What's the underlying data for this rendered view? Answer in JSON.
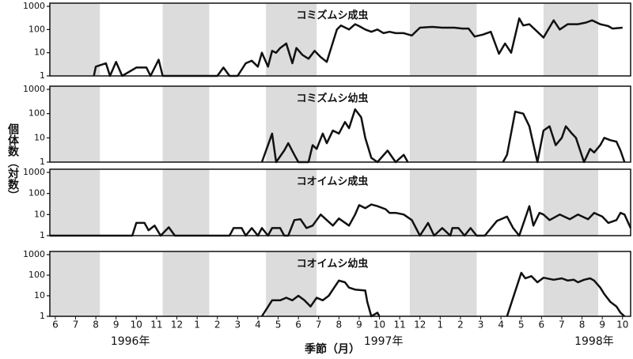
{
  "chart_data": [
    {
      "type": "line",
      "title": "コミズムシ成虫",
      "color": "#111111",
      "log_scale": true,
      "ylim": [
        1,
        1000
      ],
      "yticks": [
        1,
        10,
        100,
        1000
      ],
      "xlim": [
        -0.27,
        28.4
      ],
      "x": [
        1.9,
        2.0,
        2.5,
        2.7,
        3.0,
        3.3,
        4.0,
        4.5,
        4.7,
        5.1,
        5.3,
        8.0,
        8.3,
        8.6,
        9.0,
        9.4,
        9.7,
        10.0,
        10.2,
        10.5,
        10.7,
        10.9,
        11.1,
        11.4,
        11.7,
        11.9,
        12.2,
        12.5,
        12.8,
        13.1,
        13.4,
        13.9,
        14.1,
        14.5,
        14.8,
        15.0,
        15.3,
        15.6,
        15.9,
        16.2,
        16.5,
        16.8,
        17.2,
        17.6,
        18.0,
        18.6,
        19.1,
        19.7,
        20.1,
        20.4,
        20.7,
        21.1,
        21.5,
        21.9,
        22.2,
        22.5,
        22.9,
        23.1,
        23.4,
        23.8,
        24.1,
        24.6,
        24.9,
        25.3,
        25.8,
        26.2,
        26.5,
        26.9,
        27.3,
        27.5,
        28.0
      ],
      "values": [
        1,
        2.5,
        3.5,
        1,
        4,
        1,
        2.3,
        2.3,
        1,
        5,
        1,
        1,
        2.3,
        1,
        1,
        3.5,
        4.5,
        2.5,
        10,
        2.5,
        12,
        10,
        16,
        25,
        3.5,
        16,
        8,
        5.5,
        12,
        6.5,
        4,
        100,
        150,
        100,
        170,
        140,
        100,
        80,
        100,
        70,
        80,
        70,
        70,
        55,
        120,
        130,
        120,
        120,
        110,
        110,
        50,
        60,
        80,
        9,
        25,
        10,
        300,
        150,
        170,
        80,
        45,
        250,
        100,
        170,
        170,
        200,
        250,
        170,
        140,
        110,
        120
      ]
    },
    {
      "type": "line",
      "title": "コミズムシ幼虫",
      "color": "#111111",
      "log_scale": true,
      "ylim": [
        1,
        1000
      ],
      "yticks": [
        1,
        10,
        100,
        1000
      ],
      "xlim": [
        -0.27,
        28.4
      ],
      "x": [
        10.2,
        10.7,
        10.9,
        11.3,
        11.5,
        11.8,
        12.0,
        12.5,
        12.7,
        12.9,
        13.2,
        13.4,
        13.7,
        14.0,
        14.3,
        14.5,
        14.8,
        15.1,
        15.3,
        15.6,
        15.9,
        16.4,
        16.8,
        17.2,
        17.4,
        20,
        22.1,
        22.3,
        22.7,
        23.1,
        23.4,
        23.8,
        24.1,
        24.4,
        24.7,
        25.0,
        25.2,
        25.5,
        25.7,
        26.1,
        26.4,
        26.6,
        26.9,
        27.1,
        27.4,
        27.7,
        27.9,
        28.1
      ],
      "values": [
        1,
        15,
        1,
        3,
        6,
        2,
        1,
        1,
        5,
        3.5,
        15,
        6,
        20,
        15,
        45,
        25,
        150,
        70,
        10,
        1.5,
        1,
        3,
        1,
        2,
        1,
        null,
        1,
        2,
        120,
        100,
        30,
        1,
        20,
        30,
        5,
        10,
        30,
        15,
        10,
        1,
        3.5,
        2.5,
        5,
        10,
        8,
        7,
        3,
        1
      ]
    },
    {
      "type": "line",
      "title": "コオイムシ成虫",
      "color": "#111111",
      "log_scale": true,
      "ylim": [
        1,
        1000
      ],
      "yticks": [
        1,
        10,
        100,
        1000
      ],
      "xlim": [
        -0.27,
        28.4
      ],
      "x": [
        -0.27,
        3.8,
        4.0,
        4.4,
        4.6,
        4.9,
        5.2,
        5.6,
        5.9,
        8.6,
        8.8,
        9.2,
        9.4,
        9.7,
        10.0,
        10.2,
        10.5,
        10.7,
        11.1,
        11.3,
        11.5,
        11.8,
        12.1,
        12.4,
        12.7,
        13.1,
        13.4,
        13.7,
        14.0,
        14.5,
        14.8,
        15.0,
        15.3,
        15.6,
        15.9,
        16.3,
        16.5,
        16.8,
        17.2,
        17.6,
        18.0,
        18.4,
        18.7,
        19.1,
        19.5,
        19.6,
        19.9,
        20.2,
        20.5,
        20.8,
        21.2,
        21.8,
        22.3,
        22.6,
        22.9,
        23.4,
        23.6,
        23.9,
        24.1,
        24.4,
        24.9,
        25.4,
        25.8,
        26.3,
        26.6,
        27.0,
        27.3,
        27.7,
        27.9,
        28.1,
        28.4
      ],
      "values": [
        1,
        1,
        4,
        4,
        1.8,
        3,
        1,
        2.5,
        1,
        1,
        2.3,
        2.3,
        1,
        2.3,
        1,
        2.3,
        1,
        2.3,
        2.3,
        1,
        1,
        5.5,
        6,
        2.3,
        3,
        10,
        5.5,
        3,
        6.5,
        3,
        10,
        28,
        20,
        30,
        25,
        18,
        12,
        12,
        10,
        5.5,
        1,
        4,
        1,
        2.3,
        1,
        2.3,
        2.3,
        1,
        2.3,
        1,
        1,
        5,
        8,
        2.3,
        1,
        25,
        3,
        12,
        10,
        5.5,
        10,
        6,
        10,
        6,
        12,
        8,
        4,
        5.5,
        12,
        10,
        2.3
      ]
    },
    {
      "type": "line",
      "title": "コオイムシ幼虫",
      "color": "#111111",
      "log_scale": true,
      "ylim": [
        1,
        1000
      ],
      "yticks": [
        1,
        10,
        100,
        1000
      ],
      "xlim": [
        -0.27,
        28.4
      ],
      "x": [
        10.2,
        10.7,
        11.1,
        11.4,
        11.7,
        12.0,
        12.3,
        12.6,
        12.9,
        13.2,
        13.5,
        13.7,
        14.0,
        14.3,
        14.5,
        14.8,
        15.3,
        15.4,
        15.6,
        15.9,
        16.0,
        20,
        22.3,
        23.0,
        23.2,
        23.5,
        23.8,
        24.1,
        24.6,
        25.0,
        25.3,
        25.6,
        25.8,
        26.1,
        26.4,
        26.6,
        26.9,
        27.1,
        27.4,
        27.7,
        27.9,
        28.1
      ],
      "values": [
        1,
        6,
        6,
        8,
        6,
        10,
        6,
        3,
        8,
        6,
        10,
        20,
        55,
        45,
        25,
        20,
        18,
        5,
        1,
        1.5,
        1,
        null,
        1,
        130,
        70,
        90,
        45,
        75,
        60,
        70,
        55,
        60,
        45,
        60,
        70,
        55,
        25,
        12,
        5,
        3,
        1.5,
        1
      ],
      "xticks": [
        {
          "value": 0,
          "label": "6"
        },
        {
          "value": 1,
          "label": "7"
        },
        {
          "value": 2,
          "label": "8"
        },
        {
          "value": 3,
          "label": "9"
        },
        {
          "value": 4,
          "label": "10"
        },
        {
          "value": 5,
          "label": "11"
        },
        {
          "value": 6,
          "label": "12"
        },
        {
          "value": 7,
          "label": "1"
        },
        {
          "value": 8,
          "label": "2"
        },
        {
          "value": 9,
          "label": "3"
        },
        {
          "value": 10,
          "label": "4"
        },
        {
          "value": 11,
          "label": "5"
        },
        {
          "value": 12,
          "label": "6"
        },
        {
          "value": 13,
          "label": "7"
        },
        {
          "value": 14,
          "label": "8"
        },
        {
          "value": 15,
          "label": "9"
        },
        {
          "value": 16,
          "label": "10"
        },
        {
          "value": 17,
          "label": "11"
        },
        {
          "value": 18,
          "label": "12"
        },
        {
          "value": 19,
          "label": "1"
        },
        {
          "value": 20,
          "label": "2"
        },
        {
          "value": 21,
          "label": "3"
        },
        {
          "value": 22,
          "label": "4"
        },
        {
          "value": 23,
          "label": "5"
        },
        {
          "value": 24,
          "label": "6"
        },
        {
          "value": 25,
          "label": "7"
        },
        {
          "value": 26,
          "label": "8"
        },
        {
          "value": 27,
          "label": "9"
        },
        {
          "value": 28,
          "label": "10"
        }
      ],
      "year_labels": [
        {
          "value": 3.7,
          "label": "1996年"
        },
        {
          "value": 16.2,
          "label": "1997年"
        },
        {
          "value": 26.6,
          "label": "1998年"
        }
      ],
      "x_label": "季節（月）"
    }
  ],
  "y_label": "個体数（対数）",
  "shaded_ranges": [
    [
      -0.27,
      2.2
    ],
    [
      5.3,
      7.6
    ],
    [
      10.4,
      12.9
    ],
    [
      17.5,
      20.8
    ],
    [
      24.1,
      26.8
    ]
  ]
}
